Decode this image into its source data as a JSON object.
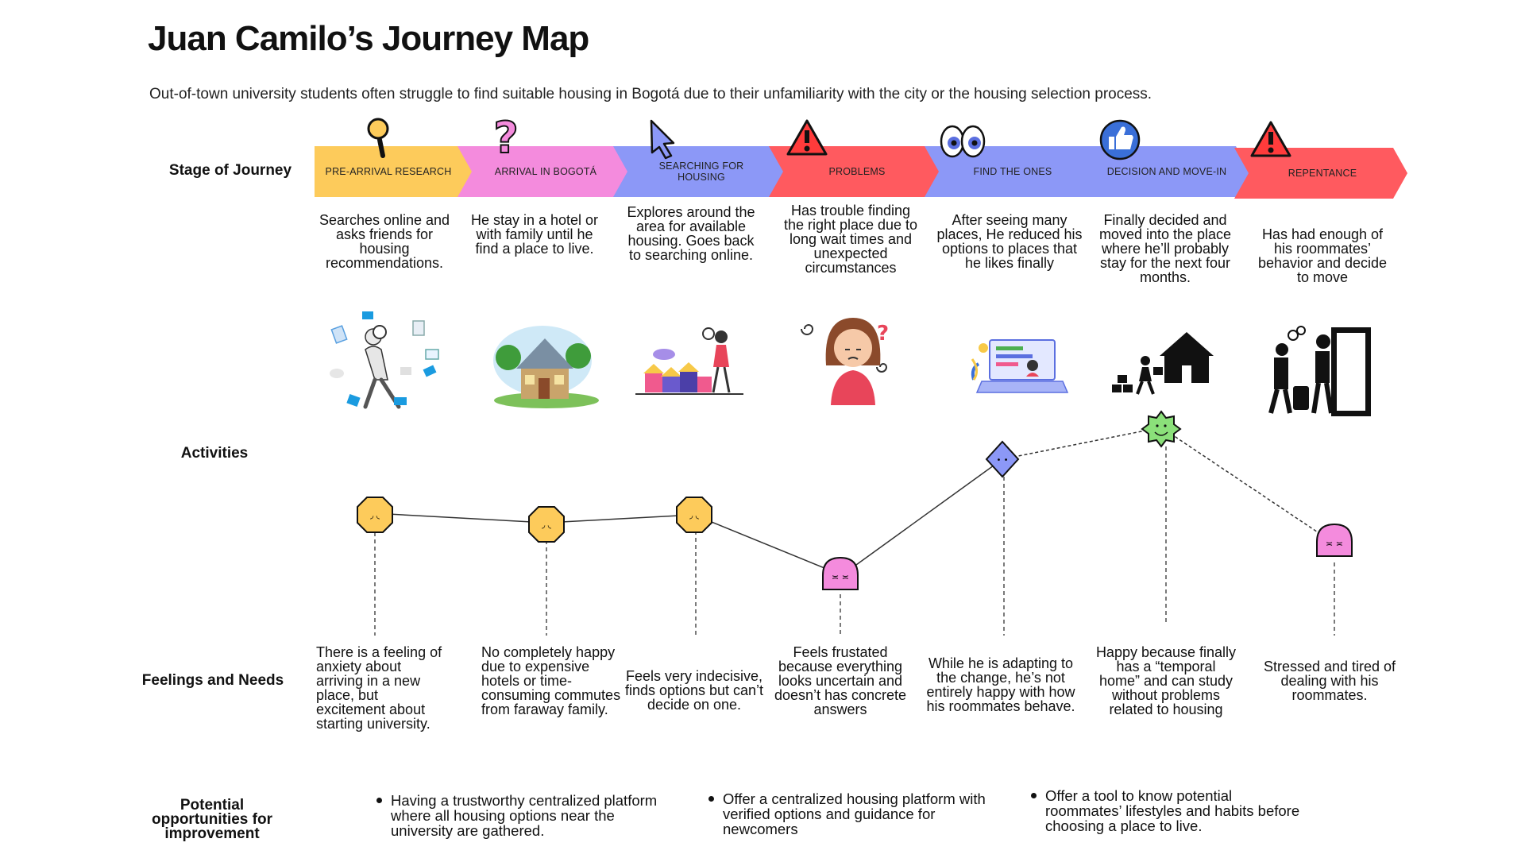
{
  "title": "Juan Camilo’s Journey Map",
  "subtitle": "Out-of-town university students often struggle to find suitable housing in Bogotá due to their unfamiliarity with the city or the housing selection process.",
  "row_labels": {
    "stage": "Stage of Journey",
    "activities": "Activities",
    "feelings": "Feelings and Needs",
    "opportunities": "Potential opportunities for improvement"
  },
  "stages": [
    {
      "label": "PRE-ARRIVAL RESEARCH",
      "color": "#FDCB5B",
      "icon": "magnifier-icon",
      "activity": "Searches online and asks friends for housing recommendations.",
      "feeling": "There is a feeling of anxiety about arriving in a new place, but excitement about starting university.",
      "emotion": "anxious"
    },
    {
      "label": "ARRIVAL IN BOGOTÁ",
      "color": "#F48BDD",
      "icon": "question-mark-icon",
      "activity": "He stay in a hotel or with family until he find a place to live.",
      "feeling": "No completely happy due to expensive hotels or time-consuming commutes from faraway family.",
      "emotion": "anxious"
    },
    {
      "label": "SEARCHING FOR HOUSING",
      "color": "#8C98F7",
      "icon": "cursor-icon",
      "activity": "Explores around the area for available housing. Goes back to searching online.",
      "feeling": "Feels very indecisive, finds options but can’t decide on one.",
      "emotion": "anxious"
    },
    {
      "label": "PROBLEMS",
      "color": "#FF5A5F",
      "icon": "warning-icon",
      "activity": "Has trouble finding the right place due to long wait times and unexpected circumstances",
      "feeling": "Feels frustated because everything looks uncertain and doesn’t has concrete answers",
      "emotion": "frustrated"
    },
    {
      "label": "FIND THE ONES",
      "color": "#8C98F7",
      "icon": "eyes-icon",
      "activity": "After seeing many places, He reduced his options to places that he likes finally",
      "feeling": "While he is adapting to the change, he’s not entirely happy with how his roommates behave.",
      "emotion": "neutral"
    },
    {
      "label": "DECISION AND MOVE-IN",
      "color": "#8C98F7",
      "icon": "thumbs-up-icon",
      "activity": "Finally decided and moved into the place where he’ll probably stay for the next four months.",
      "feeling": "Happy because finally has a “temporal home” and can study without problems related to housing",
      "emotion": "happy"
    },
    {
      "label": "REPENTANCE",
      "color": "#FF5A5F",
      "icon": "warning-icon",
      "activity": "Has had enough of his roommates’ behavior and decide to move",
      "feeling": "Stressed and tired of dealing with his roommates.",
      "emotion": "frustrated"
    }
  ],
  "opportunities": [
    "Having a trustworthy centralized platform where all housing options near the university are gathered.",
    "Offer a centralized housing platform with verified options and guidance for newcomers",
    "Offer a tool to know potential roommates’ lifestyles and habits before choosing a place to live."
  ],
  "emotion_colors": {
    "anxious": "#FDCB5B",
    "frustrated": "#F48BDD",
    "neutral": "#8C98F7",
    "happy": "#8BE07A"
  }
}
